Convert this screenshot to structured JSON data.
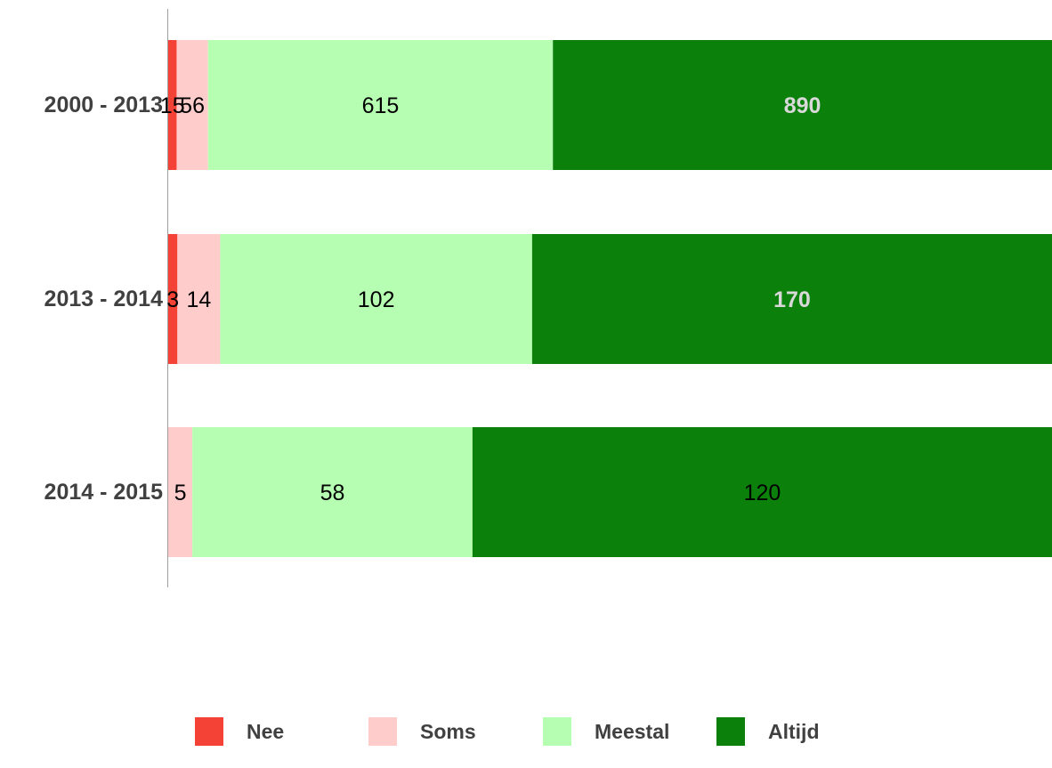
{
  "chart_data": {
    "type": "bar",
    "orientation": "horizontal",
    "stacked": "percent",
    "categories": [
      "2000 - 2013",
      "2013 - 2014",
      "2014 - 2015"
    ],
    "series": [
      {
        "name": "Nee",
        "color": "#f44336",
        "values": [
          15,
          3,
          0
        ],
        "labels": [
          "15",
          "3",
          ""
        ],
        "label_color": "#000000",
        "label_bold": false
      },
      {
        "name": "Soms",
        "color": "#ffcccc",
        "values": [
          56,
          14,
          5
        ],
        "labels": [
          "56",
          "14",
          "5"
        ],
        "label_color": "#000000",
        "label_bold": false
      },
      {
        "name": "Meestal",
        "color": "#b6ffb2",
        "values": [
          615,
          102,
          58
        ],
        "labels": [
          "615",
          "102",
          "58"
        ],
        "label_color": "#000000",
        "label_bold": false
      },
      {
        "name": "Altijd",
        "color": "#0b800b",
        "values": [
          890,
          170,
          120
        ],
        "labels": [
          "890",
          "170",
          "120"
        ],
        "label_color": "#d9d9d9",
        "label_bold": true,
        "label_overrides": {
          "2": {
            "color": "#000000",
            "bold": false
          }
        }
      }
    ],
    "legend_position": "bottom",
    "grid": false
  }
}
